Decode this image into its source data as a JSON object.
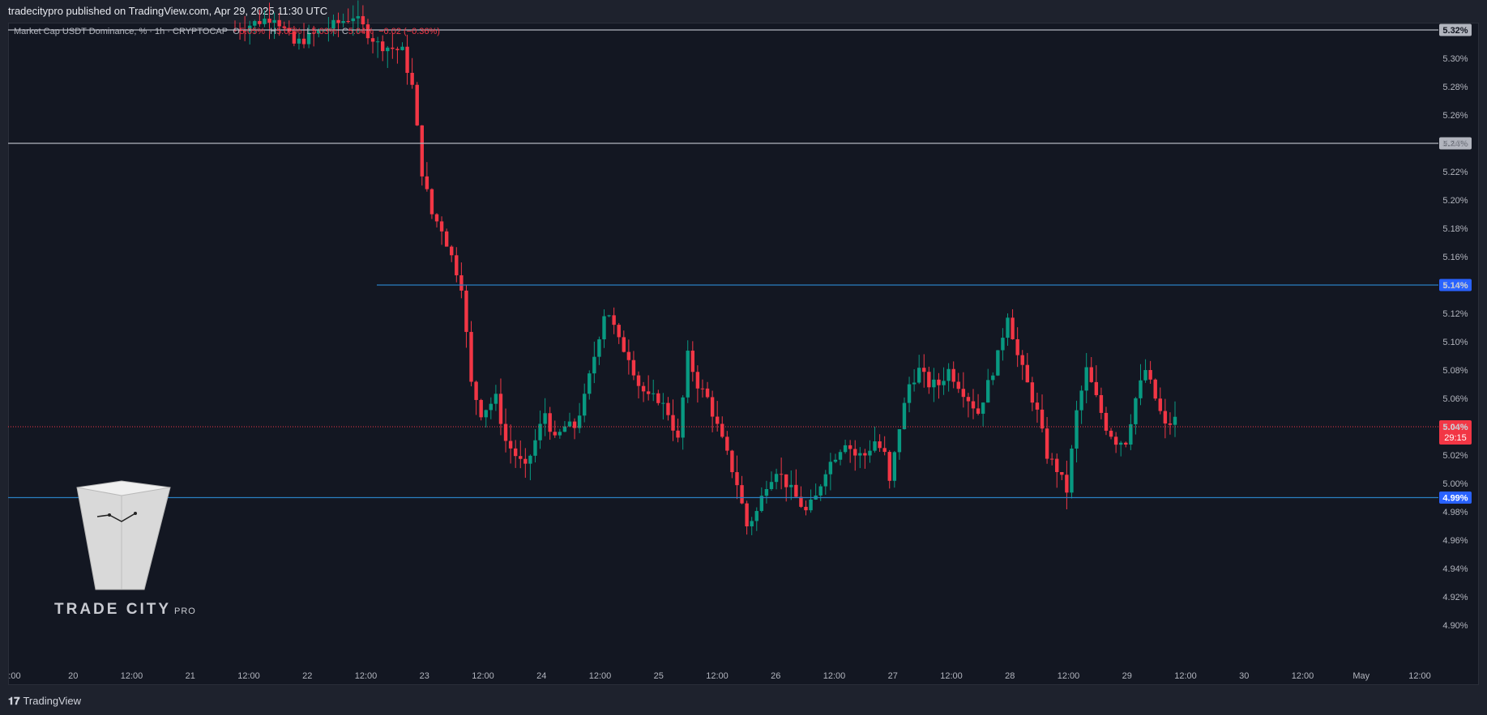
{
  "header": {
    "publisher_line": "tradecitypro published on TradingView.com, Apr 29, 2025 11:30 UTC"
  },
  "legend": {
    "symbol": "Market Cap USDT Dominance, % · 1h · CRYPTOCAP",
    "open_label": "O",
    "open_value": "5.05%",
    "high_label": "H",
    "high_value": "5.05%",
    "low_label": "L",
    "low_value": "5.03%",
    "close_label": "C",
    "close_value": "5.04%",
    "change": "−0.02 (−0.36%)"
  },
  "watermark": {
    "brand": "TRADE CITY",
    "suffix": "PRO"
  },
  "footer": {
    "brand": "TradingView"
  },
  "colors": {
    "background": "#131722",
    "up": "#089981",
    "down": "#f23645",
    "level_white": "#b2b5be",
    "level_blue": "#2a7fc1",
    "current_price": "#f23645"
  },
  "chart_data": {
    "type": "candlestick",
    "timeframe": "1h",
    "y_axis_unit": "%",
    "y_ticks": [
      "5.30%",
      "5.28%",
      "5.26%",
      "5.24%",
      "5.22%",
      "5.20%",
      "5.18%",
      "5.16%",
      "5.14%",
      "5.12%",
      "5.10%",
      "5.08%",
      "5.06%",
      "5.04%",
      "5.02%",
      "5.00%",
      "4.98%",
      "4.96%",
      "4.94%",
      "4.92%",
      "4.90%"
    ],
    "x_ticks": [
      ":00",
      "20",
      "12:00",
      "21",
      "12:00",
      "22",
      "12:00",
      "23",
      "12:00",
      "24",
      "12:00",
      "25",
      "12:00",
      "26",
      "12:00",
      "27",
      "12:00",
      "28",
      "12:00",
      "29",
      "12:00",
      "30",
      "12:00",
      "May",
      "12:00"
    ],
    "ylim": [
      4.89,
      5.335
    ],
    "horizontal_levels": [
      {
        "value": 5.32,
        "label": "5.32%",
        "color": "white"
      },
      {
        "value": 5.24,
        "label": "5.24%",
        "color": "white"
      },
      {
        "value": 5.14,
        "label": "5.14%",
        "color": "blue"
      },
      {
        "value": 4.99,
        "label": "4.99%",
        "color": "blue"
      }
    ],
    "current_price": {
      "value": 5.04,
      "label": "5.04%",
      "countdown": "29:15"
    },
    "close_path": [
      [
        0,
        5.32
      ],
      [
        8,
        5.33
      ],
      [
        12,
        5.31
      ],
      [
        18,
        5.32
      ],
      [
        24,
        5.33
      ],
      [
        29,
        5.31
      ],
      [
        34,
        5.305
      ],
      [
        36,
        5.28
      ],
      [
        38,
        5.22
      ],
      [
        40,
        5.19
      ],
      [
        42,
        5.18
      ],
      [
        44,
        5.16
      ],
      [
        46,
        5.14
      ],
      [
        48,
        5.07
      ],
      [
        50,
        5.05
      ],
      [
        53,
        5.06
      ],
      [
        55,
        5.03
      ],
      [
        57,
        5.02
      ],
      [
        59,
        5.01
      ],
      [
        61,
        5.03
      ],
      [
        63,
        5.05
      ],
      [
        65,
        5.03
      ],
      [
        67,
        5.04
      ],
      [
        69,
        5.04
      ],
      [
        71,
        5.06
      ],
      [
        73,
        5.09
      ],
      [
        75,
        5.12
      ],
      [
        76,
        5.12
      ],
      [
        78,
        5.1
      ],
      [
        80,
        5.09
      ],
      [
        82,
        5.07
      ],
      [
        84,
        5.06
      ],
      [
        86,
        5.06
      ],
      [
        88,
        5.05
      ],
      [
        90,
        5.03
      ],
      [
        92,
        5.09
      ],
      [
        94,
        5.07
      ],
      [
        96,
        5.06
      ],
      [
        98,
        5.04
      ],
      [
        100,
        5.02
      ],
      [
        102,
        5.0
      ],
      [
        104,
        4.97
      ],
      [
        106,
        4.98
      ],
      [
        108,
        5.0
      ],
      [
        110,
        5.01
      ],
      [
        112,
        5.0
      ],
      [
        114,
        4.99
      ],
      [
        116,
        4.98
      ],
      [
        118,
        4.99
      ],
      [
        120,
        5.01
      ],
      [
        122,
        5.02
      ],
      [
        124,
        5.03
      ],
      [
        126,
        5.02
      ],
      [
        128,
        5.02
      ],
      [
        130,
        5.03
      ],
      [
        132,
        5.02
      ],
      [
        133,
        5.0
      ],
      [
        135,
        5.04
      ],
      [
        137,
        5.07
      ],
      [
        139,
        5.08
      ],
      [
        141,
        5.07
      ],
      [
        143,
        5.07
      ],
      [
        145,
        5.08
      ],
      [
        147,
        5.07
      ],
      [
        149,
        5.06
      ],
      [
        151,
        5.05
      ],
      [
        153,
        5.07
      ],
      [
        155,
        5.09
      ],
      [
        157,
        5.12
      ],
      [
        159,
        5.09
      ],
      [
        161,
        5.07
      ],
      [
        163,
        5.05
      ],
      [
        165,
        5.02
      ],
      [
        167,
        5.01
      ],
      [
        169,
        4.995
      ],
      [
        171,
        5.05
      ],
      [
        173,
        5.08
      ],
      [
        175,
        5.06
      ],
      [
        177,
        5.04
      ],
      [
        179,
        5.03
      ],
      [
        181,
        5.03
      ],
      [
        183,
        5.06
      ],
      [
        185,
        5.08
      ],
      [
        187,
        5.06
      ],
      [
        189,
        5.04
      ],
      [
        191,
        5.045
      ]
    ]
  }
}
